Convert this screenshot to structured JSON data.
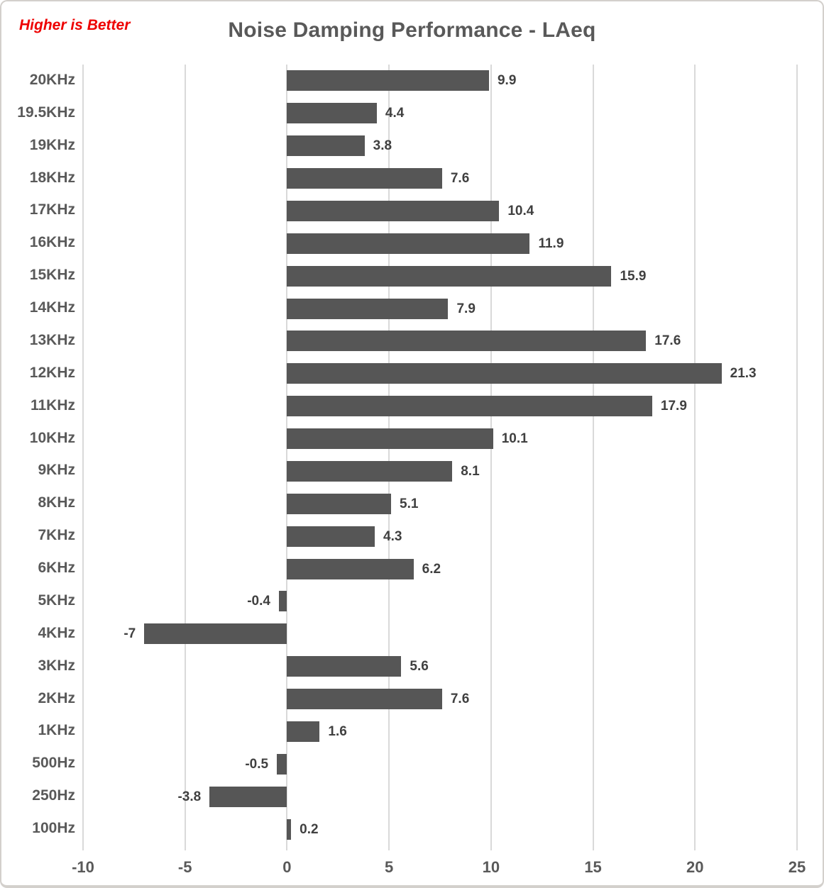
{
  "header": {
    "note": "Higher is Better",
    "title": "Noise Damping Performance - LAeq"
  },
  "chart_data": {
    "type": "bar",
    "orientation": "horizontal",
    "title": "Noise Damping Performance - LAeq",
    "annotation": "Higher is Better",
    "categories": [
      "20KHz",
      "19.5KHz",
      "19KHz",
      "18KHz",
      "17KHz",
      "16KHz",
      "15KHz",
      "14KHz",
      "13KHz",
      "12KHz",
      "11KHz",
      "10KHz",
      "9KHz",
      "8KHz",
      "7KHz",
      "6KHz",
      "5KHz",
      "4KHz",
      "3KHz",
      "2KHz",
      "1KHz",
      "500Hz",
      "250Hz",
      "100Hz"
    ],
    "values": [
      9.9,
      4.4,
      3.8,
      7.6,
      10.4,
      11.9,
      15.9,
      7.9,
      17.6,
      21.3,
      17.9,
      10.1,
      8.1,
      5.1,
      4.3,
      6.2,
      -0.4,
      -7,
      5.6,
      7.6,
      1.6,
      -0.5,
      -3.8,
      0.2
    ],
    "value_labels": [
      "9.9",
      "4.4",
      "3.8",
      "7.6",
      "10.4",
      "11.9",
      "15.9",
      "7.9",
      "17.6",
      "21.3",
      "17.9",
      "10.1",
      "8.1",
      "5.1",
      "4.3",
      "6.2",
      "-0.4",
      "-7",
      "5.6",
      "7.6",
      "1.6",
      "-0.5",
      "-3.8",
      "0.2"
    ],
    "x_ticks": [
      "-10",
      "-5",
      "0",
      "5",
      "10",
      "15",
      "20",
      "25"
    ],
    "x_tick_values": [
      -10,
      -5,
      0,
      5,
      10,
      15,
      20,
      25
    ],
    "xlim": [
      -10,
      25
    ],
    "xlabel": "",
    "ylabel": "",
    "grid": true,
    "legend": "none",
    "colors": {
      "bar": "#565656",
      "value_label": "#404040",
      "axis_text": "#595959",
      "gridline": "#d9d9d9",
      "title": "#595959",
      "annotation": "#ee0000",
      "background": "#ffffff",
      "card_border": "#d3d0cc"
    }
  }
}
